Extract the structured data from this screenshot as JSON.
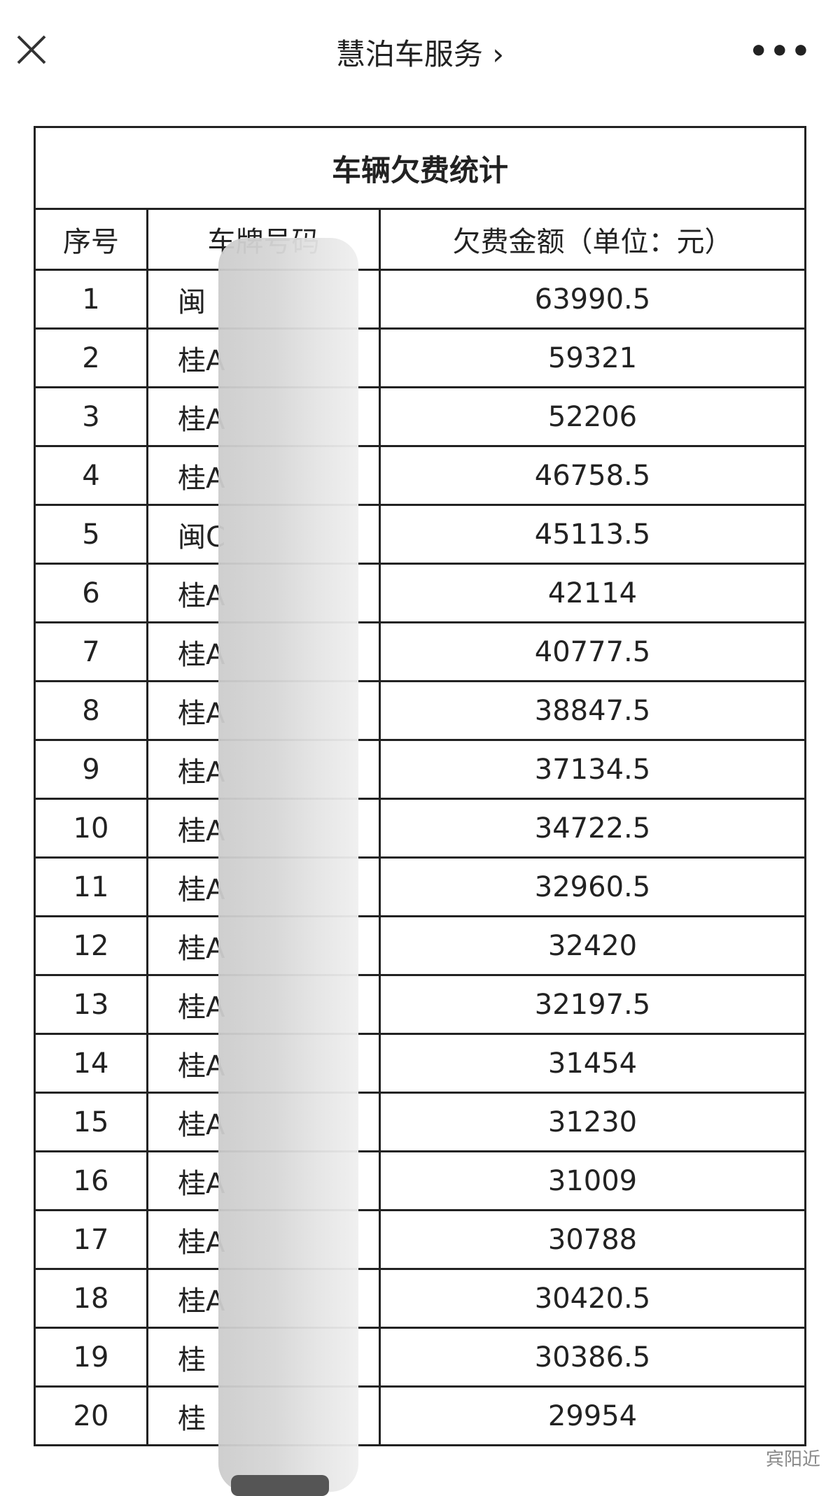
{
  "header": {
    "title": "慧泊车服务 ›",
    "close_icon": "close-icon",
    "more_label": "•••"
  },
  "table": {
    "caption": "车辆欠费统计",
    "columns": [
      "序号",
      "车牌号码",
      "欠费金额（单位：元）"
    ],
    "rows": [
      {
        "no": "1",
        "plate": "闽",
        "amount": "63990.5"
      },
      {
        "no": "2",
        "plate": "桂A",
        "amount": "59321"
      },
      {
        "no": "3",
        "plate": "桂A",
        "amount": "52206"
      },
      {
        "no": "4",
        "plate": "桂A",
        "amount": "46758.5"
      },
      {
        "no": "5",
        "plate": "闽C",
        "amount": "45113.5"
      },
      {
        "no": "6",
        "plate": "桂A",
        "amount": "42114"
      },
      {
        "no": "7",
        "plate": "桂A",
        "amount": "40777.5"
      },
      {
        "no": "8",
        "plate": "桂A",
        "amount": "38847.5"
      },
      {
        "no": "9",
        "plate": "桂A",
        "amount": "37134.5"
      },
      {
        "no": "10",
        "plate": "桂A",
        "amount": "34722.5"
      },
      {
        "no": "11",
        "plate": "桂A",
        "amount": "32960.5"
      },
      {
        "no": "12",
        "plate": "桂A",
        "amount": "32420"
      },
      {
        "no": "13",
        "plate": "桂A",
        "amount": "32197.5"
      },
      {
        "no": "14",
        "plate": "桂A",
        "amount": "31454"
      },
      {
        "no": "15",
        "plate": "桂A",
        "amount": "31230"
      },
      {
        "no": "16",
        "plate": "桂A",
        "amount": "31009"
      },
      {
        "no": "17",
        "plate": "桂A",
        "amount": "30788"
      },
      {
        "no": "18",
        "plate": "桂A",
        "amount": "30420.5"
      },
      {
        "no": "19",
        "plate": "桂",
        "amount": "30386.5"
      },
      {
        "no": "20",
        "plate": "桂",
        "amount": "29954"
      }
    ]
  },
  "watermark": "宾阳近"
}
